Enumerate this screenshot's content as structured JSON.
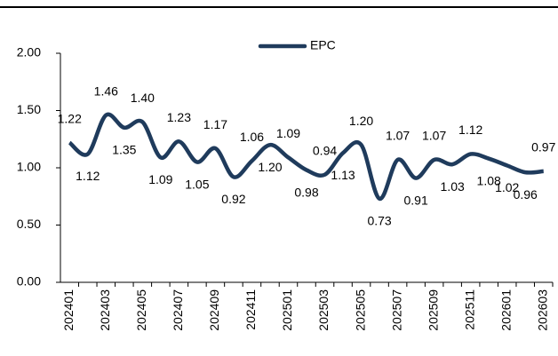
{
  "chart_data": {
    "type": "line",
    "categories": [
      "202401",
      null,
      "202403",
      null,
      "202405",
      null,
      "202407",
      null,
      "202409",
      null,
      "202411",
      null,
      "202501",
      null,
      "202503",
      null,
      "202505",
      null,
      "202507",
      null,
      "202509",
      null,
      "202511",
      null,
      "202601",
      null,
      "202603"
    ],
    "series": [
      {
        "name": "EPC",
        "color": "#1f3b5c",
        "values": [
          1.22,
          1.12,
          1.46,
          1.35,
          1.4,
          1.09,
          1.23,
          1.05,
          1.17,
          0.92,
          1.06,
          1.2,
          1.09,
          0.98,
          0.94,
          1.13,
          1.2,
          0.73,
          1.07,
          0.91,
          1.07,
          1.03,
          1.12,
          1.08,
          1.02,
          0.96,
          0.97
        ],
        "value_labels": [
          "1.22",
          "1.12",
          "1.46",
          "1.35",
          "1.40",
          "1.09",
          "1.23",
          "1.05",
          "1.17",
          "0.92",
          "1.06",
          "1.20",
          "1.09",
          "0.98",
          "0.94",
          "1.13",
          "1.20",
          "0.73",
          "1.07",
          "0.91",
          "1.07",
          "1.03",
          "1.12",
          "1.08",
          "1.02",
          "0.96",
          "0.97"
        ]
      }
    ],
    "ylim": [
      0,
      2
    ],
    "yticks": [
      {
        "value": 0,
        "label": "0.00"
      },
      {
        "value": 0.5,
        "label": "0.50"
      },
      {
        "value": 1,
        "label": "1.00"
      },
      {
        "value": 1.5,
        "label": "1.50"
      },
      {
        "value": 2,
        "label": "2.00"
      }
    ],
    "legend": "top"
  }
}
